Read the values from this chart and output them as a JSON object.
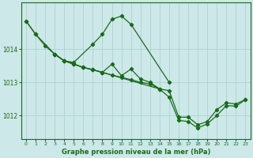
{
  "xlabel": "Graphe pression niveau de la mer (hPa)",
  "background_color": "#cce8e8",
  "grid_color": "#aacece",
  "line_color": "#1a6b1a",
  "xlim": [
    -0.5,
    23.5
  ],
  "ylim": [
    1011.3,
    1015.4
  ],
  "yticks": [
    1012,
    1013,
    1014
  ],
  "xticks": [
    0,
    1,
    2,
    3,
    4,
    5,
    6,
    7,
    8,
    9,
    10,
    11,
    12,
    13,
    14,
    15,
    16,
    17,
    18,
    19,
    20,
    21,
    22,
    23
  ],
  "series": [
    {
      "x": [
        0,
        1,
        3,
        4,
        5,
        7,
        8,
        9,
        10,
        11,
        15
      ],
      "y": [
        1014.85,
        1014.45,
        1013.85,
        1013.65,
        1013.6,
        1014.15,
        1014.45,
        1014.9,
        1015.0,
        1014.75,
        1013.0
      ]
    },
    {
      "x": [
        3,
        4,
        5,
        6,
        7,
        8,
        9,
        10,
        11,
        12,
        13,
        14
      ],
      "y": [
        1013.85,
        1013.65,
        1013.55,
        1013.45,
        1013.38,
        1013.3,
        1013.22,
        1013.15,
        1013.08,
        1013.0,
        1012.95,
        1012.8
      ]
    },
    {
      "x": [
        3,
        4,
        5,
        6,
        7,
        8,
        9,
        10,
        11,
        12,
        13,
        14,
        15,
        16,
        17,
        18,
        19,
        20,
        21,
        22,
        23
      ],
      "y": [
        1013.85,
        1013.65,
        1013.55,
        1013.45,
        1013.38,
        1013.3,
        1013.55,
        1013.2,
        1013.4,
        1013.1,
        1013.0,
        1012.8,
        1012.75,
        1011.95,
        1011.95,
        1011.72,
        1011.82,
        1012.18,
        1012.38,
        1012.35,
        1012.48
      ]
    },
    {
      "x": [
        0,
        1,
        2,
        3,
        4,
        5,
        6,
        7,
        8,
        14,
        15,
        16,
        17,
        18,
        19,
        20,
        21,
        22,
        23
      ],
      "y": [
        1014.85,
        1014.45,
        1014.1,
        1013.85,
        1013.65,
        1013.55,
        1013.45,
        1013.38,
        1013.3,
        1012.8,
        1012.55,
        1011.85,
        1011.82,
        1011.62,
        1011.75,
        1012.0,
        1012.3,
        1012.28,
        1012.48
      ]
    }
  ]
}
